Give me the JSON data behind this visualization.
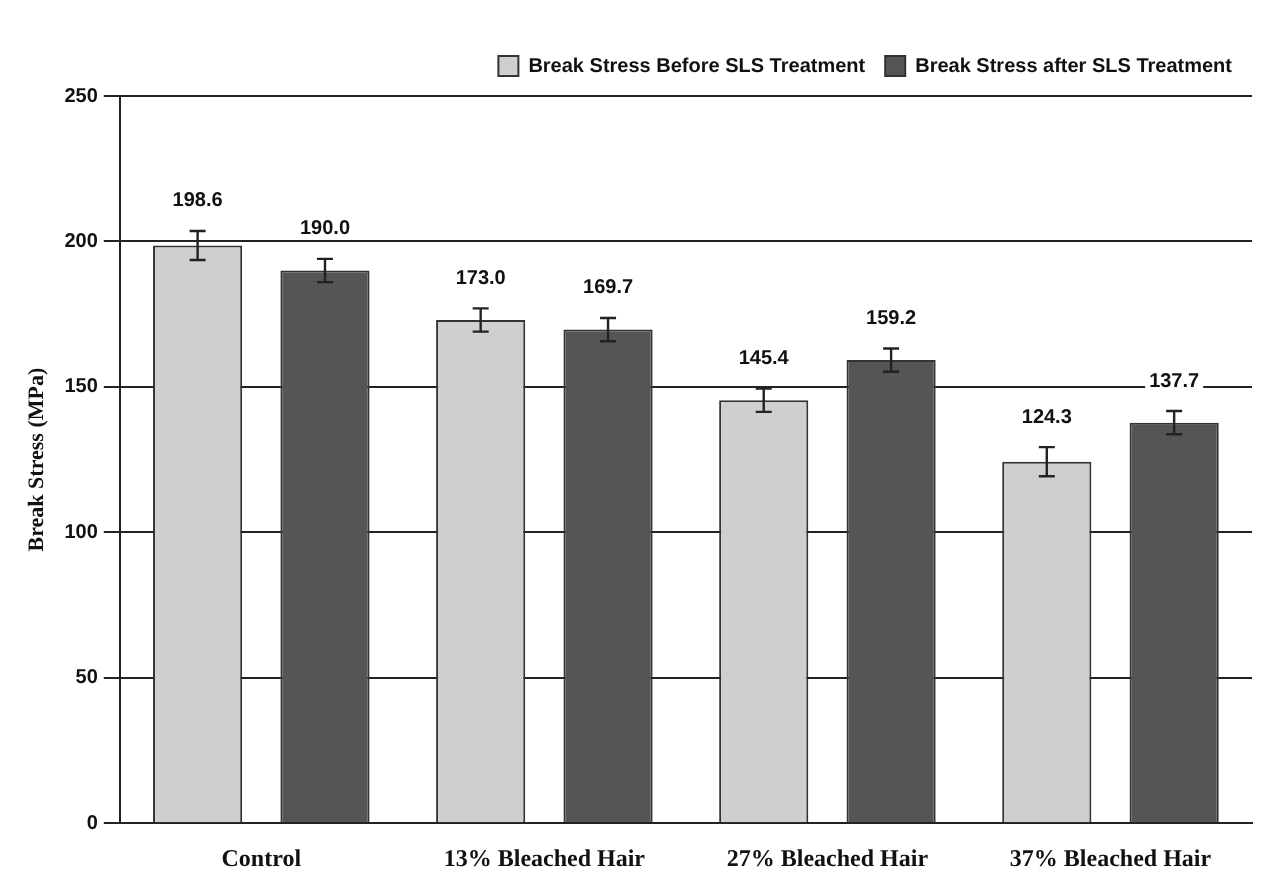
{
  "chart_data": {
    "type": "bar",
    "ylabel": "Break Stress (MPa)",
    "categories": [
      "Control",
      "13% Bleached Hair",
      "27% Bleached Hair",
      "37% Bleached Hair"
    ],
    "series": [
      {
        "name": "Break Stress Before SLS Treatment",
        "color": "#cfcfcf",
        "values": [
          198.6,
          173.0,
          145.4,
          124.3
        ],
        "errors": [
          5,
          4,
          4,
          5
        ],
        "value_labels": [
          "198.6",
          "173.0",
          "145.4",
          "124.3"
        ]
      },
      {
        "name": "Break Stress after SLS Treatment",
        "color": "#555555",
        "values": [
          190.0,
          169.7,
          159.2,
          137.7
        ],
        "errors": [
          4,
          4,
          4,
          4
        ],
        "value_labels": [
          "190.0",
          "169.7",
          "159.2",
          "137.7"
        ]
      }
    ],
    "ylim": [
      0,
      250
    ],
    "yticks": [
      0,
      50,
      100,
      150,
      200,
      250
    ],
    "grid": "y",
    "legend": "top right"
  }
}
